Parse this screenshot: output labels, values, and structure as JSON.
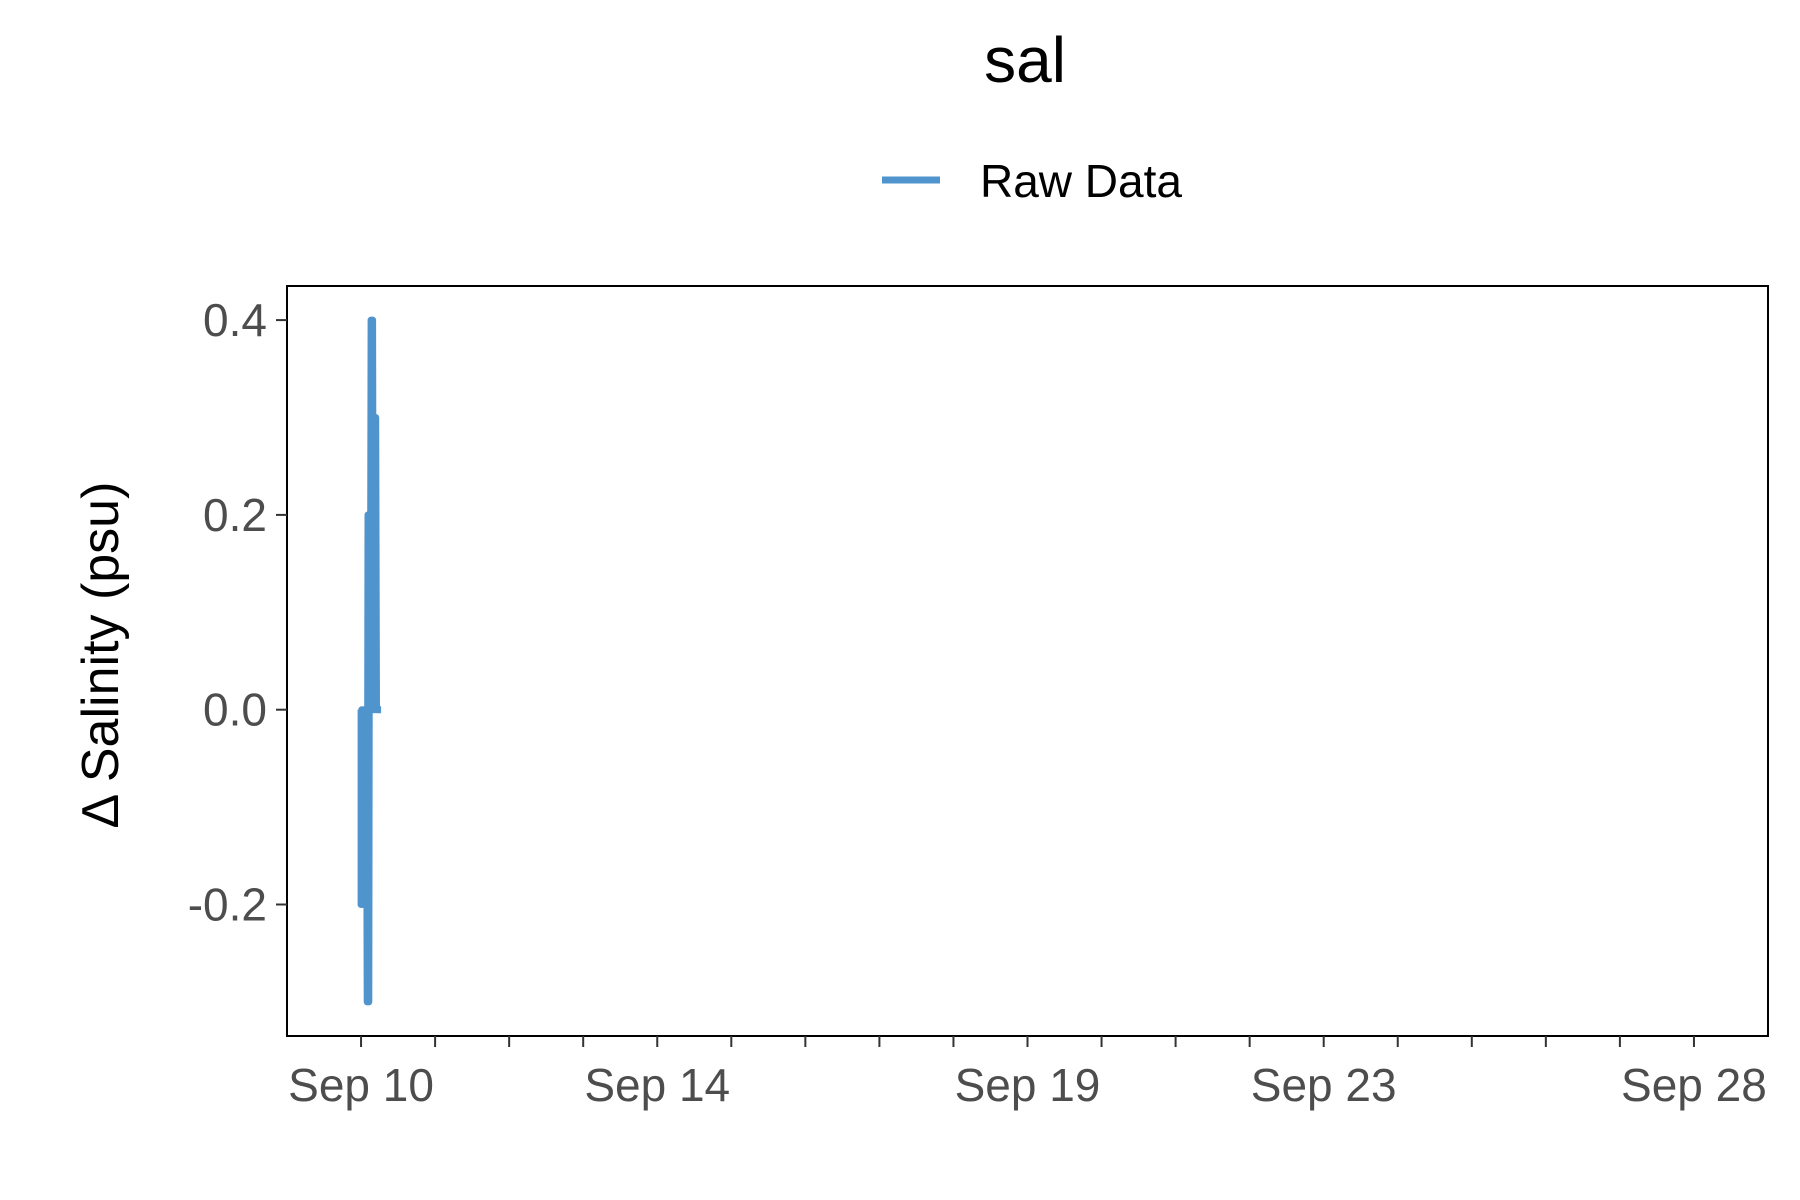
{
  "chart_data": {
    "type": "line",
    "title": "sal",
    "xlabel": "",
    "ylabel": "Δ Salinity (psu)",
    "legend": {
      "position": "top",
      "entries": [
        "Raw Data"
      ]
    },
    "grid": false,
    "xlim": [
      "2023-09-09T00:00",
      "2023-09-29T00:00"
    ],
    "ylim": [
      -0.335,
      0.435
    ],
    "x_ticks": [
      {
        "date": "2023-09-10",
        "label": "Sep 10"
      },
      {
        "date": "2023-09-14",
        "label": "Sep 14"
      },
      {
        "date": "2023-09-19",
        "label": "Sep 19"
      },
      {
        "date": "2023-09-23",
        "label": "Sep 23"
      },
      {
        "date": "2023-09-28",
        "label": "Sep 28"
      }
    ],
    "x_minor_ticks": [
      "2023-09-11",
      "2023-09-12",
      "2023-09-13",
      "2023-09-15",
      "2023-09-16",
      "2023-09-17",
      "2023-09-18",
      "2023-09-20",
      "2023-09-21",
      "2023-09-22",
      "2023-09-24",
      "2023-09-25",
      "2023-09-26",
      "2023-09-27"
    ],
    "y_ticks": [
      {
        "value": -0.2,
        "label": "-0.2"
      },
      {
        "value": 0.0,
        "label": "0.0"
      },
      {
        "value": 0.2,
        "label": "0.2"
      },
      {
        "value": 0.4,
        "label": "0.4"
      }
    ],
    "series": [
      {
        "name": "Raw Data",
        "color": "#4f94cd",
        "points": [
          {
            "x": "2023-09-10T00:00",
            "y": 0.0
          },
          {
            "x": "2023-09-10T00:00",
            "y": -0.2
          },
          {
            "x": "2023-09-10T00:15",
            "y": 0.0
          },
          {
            "x": "2023-09-10T00:30",
            "y": -0.2
          },
          {
            "x": "2023-09-10T00:45",
            "y": 0.0
          },
          {
            "x": "2023-09-10T01:00",
            "y": -0.1
          },
          {
            "x": "2023-09-10T01:15",
            "y": 0.0
          },
          {
            "x": "2023-09-10T01:30",
            "y": -0.2
          },
          {
            "x": "2023-09-10T01:45",
            "y": 0.0
          },
          {
            "x": "2023-09-10T02:00",
            "y": -0.3
          },
          {
            "x": "2023-09-10T02:15",
            "y": 0.2
          },
          {
            "x": "2023-09-10T02:30",
            "y": -0.3
          },
          {
            "x": "2023-09-10T02:45",
            "y": 0.2
          },
          {
            "x": "2023-09-10T03:00",
            "y": 0.0
          },
          {
            "x": "2023-09-10T03:15",
            "y": 0.4
          },
          {
            "x": "2023-09-10T03:30",
            "y": 0.0
          },
          {
            "x": "2023-09-10T03:45",
            "y": 0.4
          },
          {
            "x": "2023-09-10T04:00",
            "y": 0.0
          },
          {
            "x": "2023-09-10T04:15",
            "y": 0.3
          },
          {
            "x": "2023-09-10T04:30",
            "y": 0.0
          },
          {
            "x": "2023-09-10T04:45",
            "y": 0.3
          },
          {
            "x": "2023-09-10T05:00",
            "y": 0.0
          },
          {
            "x": "2023-09-10T06:30",
            "y": 0.0
          }
        ]
      }
    ]
  }
}
